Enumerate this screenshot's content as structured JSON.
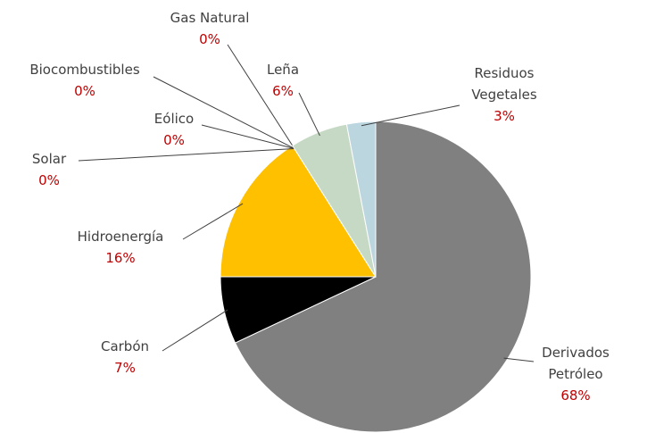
{
  "chart_data": {
    "type": "pie",
    "categories": [
      "Derivados Petróleo",
      "Carbón",
      "Hidroenergía",
      "Solar",
      "Eólico",
      "Biocombustibles",
      "Gas Natural",
      "Leña",
      "Residuos Vegetales"
    ],
    "values": [
      68,
      7,
      16,
      0,
      0,
      0,
      0,
      6,
      3
    ],
    "value_labels": [
      "68%",
      "7%",
      "16%",
      "0%",
      "0%",
      "0%",
      "0%",
      "6%",
      "3%"
    ],
    "colors": [
      "#808080",
      "#000000",
      "#ffc000",
      "#a5a5a5",
      "#7f7f7f",
      "#5b9bd5",
      "#a9a9a9",
      "#c6d9c4",
      "#bcd6e0"
    ]
  }
}
